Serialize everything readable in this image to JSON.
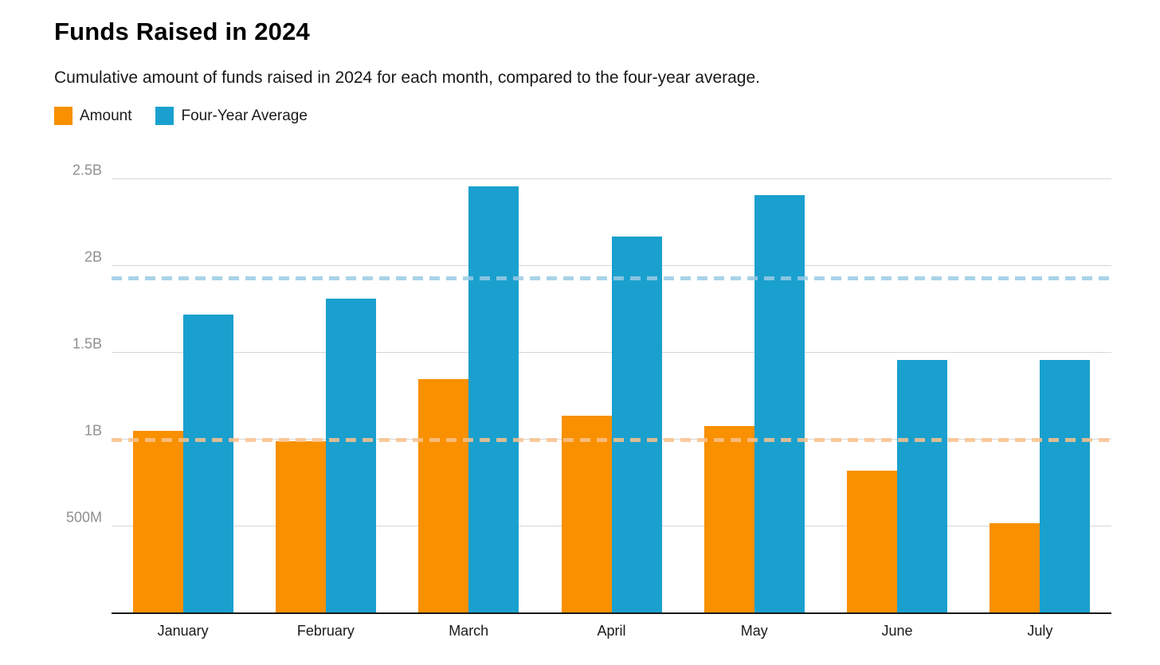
{
  "title": "Funds Raised in 2024",
  "subtitle": "Cumulative amount of funds raised in 2024 for each month, compared to the four-year average.",
  "legend": [
    {
      "label": "Amount",
      "color": "#F89000"
    },
    {
      "label": "Four-Year Average",
      "color": "#1AA0CE"
    }
  ],
  "chart_data": {
    "type": "bar",
    "title": "Funds Raised in 2024",
    "subtitle": "Cumulative amount of funds raised in 2024 for each month, compared to the four-year average.",
    "categories": [
      "January",
      "February",
      "March",
      "April",
      "May",
      "June",
      "July"
    ],
    "unit": "billions USD",
    "series": [
      {
        "name": "Amount",
        "color": "#F89000",
        "values": [
          1.05,
          0.99,
          1.35,
          1.14,
          1.08,
          0.82,
          0.52
        ]
      },
      {
        "name": "Four-Year Average",
        "color": "#1AA0CE",
        "values": [
          1.72,
          1.81,
          2.46,
          2.17,
          2.41,
          1.46,
          1.46
        ]
      }
    ],
    "reference_lines": [
      {
        "name": "amount-overall-average",
        "series": "Amount",
        "value": 1.0,
        "color": "rgba(249,194,140,0.85)",
        "style": "dashed"
      },
      {
        "name": "four-year-overall-average",
        "series": "Four-Year Average",
        "value": 1.93,
        "color": "rgba(154,203,229,0.85)",
        "style": "dashed"
      }
    ],
    "y_ticks": [
      {
        "value": 0.5,
        "label": "500M"
      },
      {
        "value": 1.0,
        "label": "1B"
      },
      {
        "value": 1.5,
        "label": "1.5B"
      },
      {
        "value": 2.0,
        "label": "2B"
      },
      {
        "value": 2.5,
        "label": "2.5B"
      }
    ],
    "ylim": [
      0,
      2.615
    ],
    "grid": true,
    "legend_position": "top-left",
    "xlabel": "",
    "ylabel": ""
  },
  "style": {
    "grid_color": "#D6D6D6",
    "tick_label_color": "#8F8F8F",
    "month_label_color": "#1a1a1a",
    "axis_color": "#1a1a1a",
    "background": "#ffffff"
  }
}
